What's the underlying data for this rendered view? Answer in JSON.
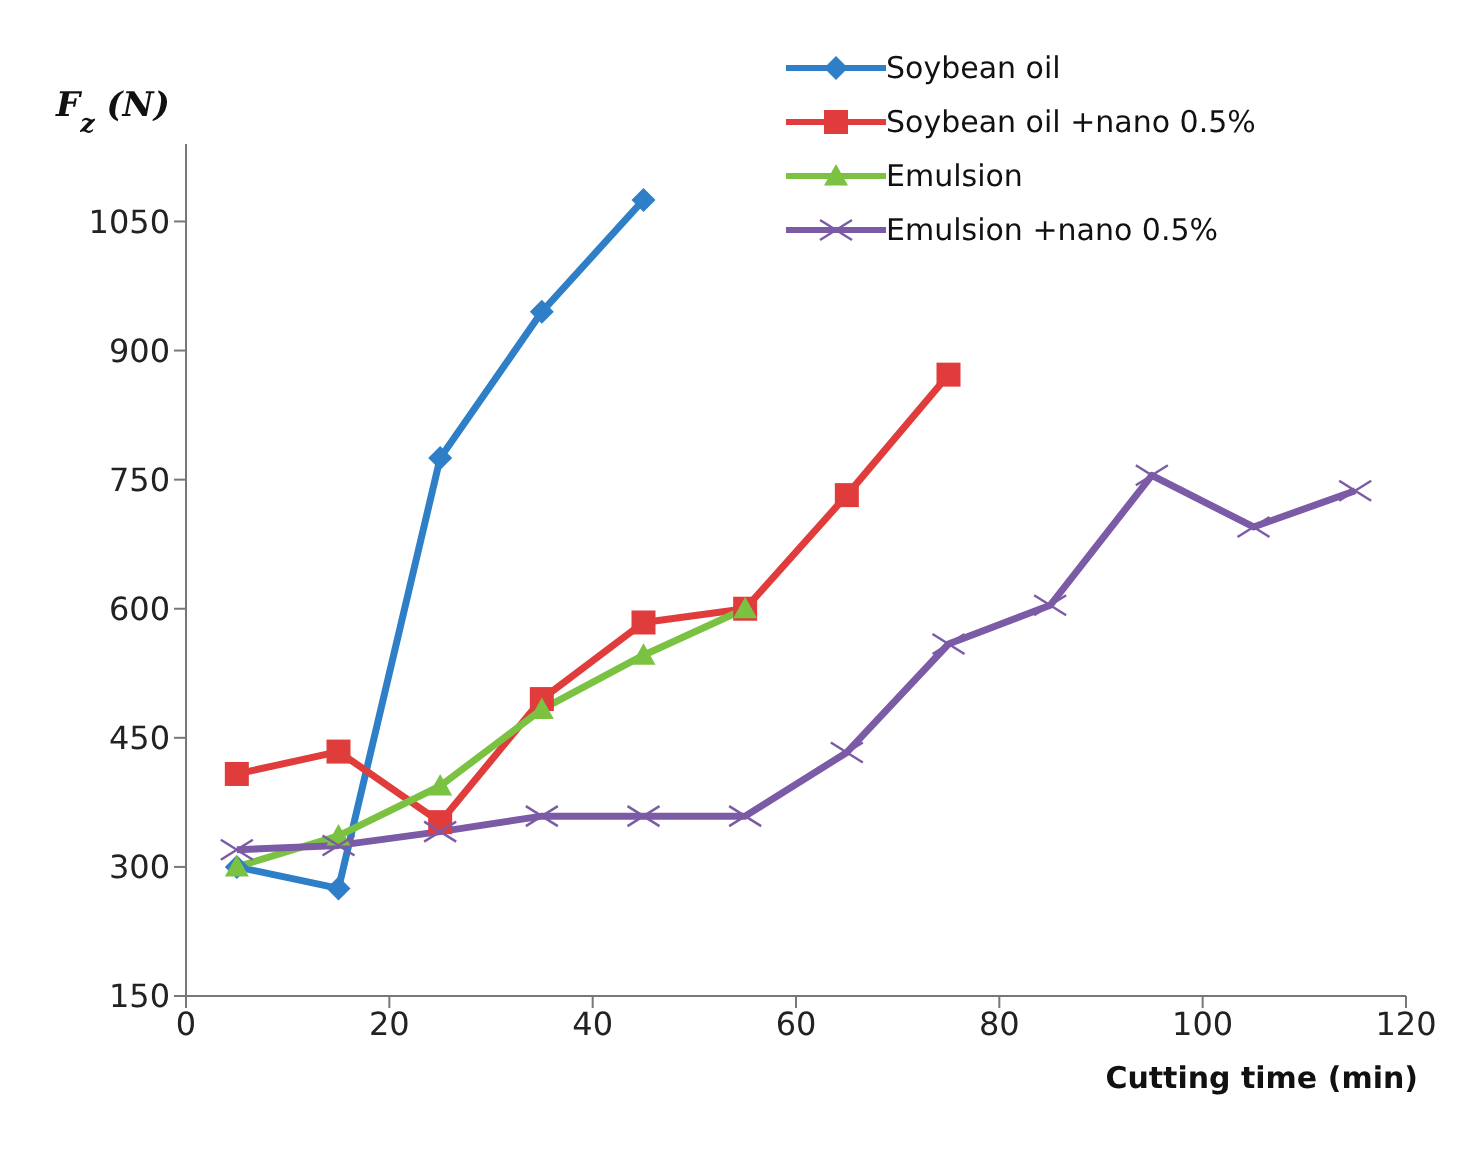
{
  "chart_data": {
    "type": "line",
    "ylabel": "F$_{z}$ (N)",
    "xlabel": "Cutting time (min)",
    "xlim": [
      0,
      120
    ],
    "xticks": [
      0,
      20,
      40,
      60,
      80,
      100,
      120
    ],
    "ylim": [
      150,
      1140
    ],
    "yticks": [
      150,
      300,
      450,
      600,
      750,
      900,
      1050
    ],
    "legend": "top right",
    "line_style": "solid",
    "series": [
      {
        "name": "Soybean oil",
        "color": "#2e7fc8",
        "marker": "diamond",
        "x": [
          5,
          15,
          25,
          35,
          45
        ],
        "values": [
          300,
          275,
          775,
          945,
          1075
        ]
      },
      {
        "name": "Soybean oil +nano 0.5%",
        "color": "#e03c3c",
        "marker": "square",
        "x": [
          5,
          15,
          25,
          35,
          45,
          55,
          65,
          75
        ],
        "values": [
          408,
          434,
          352,
          495,
          584,
          600,
          732,
          872
        ]
      },
      {
        "name": "Emulsion",
        "color": "#7cc242",
        "marker": "triangle",
        "x": [
          5,
          15,
          25,
          35,
          45,
          55
        ],
        "values": [
          300,
          336,
          394,
          483,
          546,
          600
        ]
      },
      {
        "name": "Emulsion +nano 0.5%",
        "color": "#7b5aa6",
        "marker": "cross",
        "x": [
          5,
          15,
          25,
          35,
          45,
          55,
          65,
          75,
          85,
          95,
          105,
          115
        ],
        "values": [
          320,
          325,
          341,
          359,
          359,
          359,
          433,
          559,
          604,
          755,
          695,
          737
        ]
      }
    ]
  }
}
